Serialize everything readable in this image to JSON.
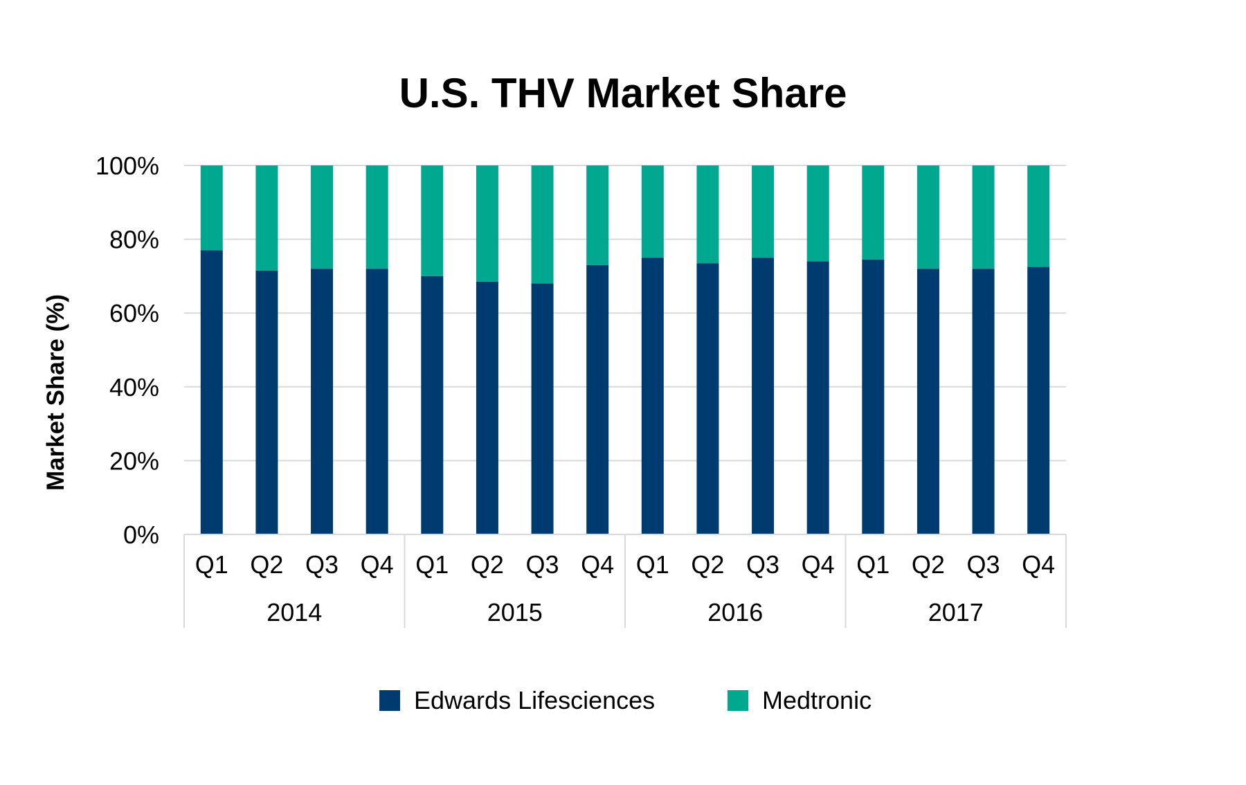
{
  "chart_data": {
    "type": "bar",
    "stacked": true,
    "title": "U.S. THV Market Share",
    "xlabel": "",
    "ylabel": "Market Share (%)",
    "ylim": [
      0,
      100
    ],
    "y_ticks": [
      0,
      20,
      40,
      60,
      80,
      100
    ],
    "y_tick_labels": [
      "0%",
      "20%",
      "40%",
      "60%",
      "80%",
      "100%"
    ],
    "grid": true,
    "legend_position": "bottom",
    "categories": [
      "Q1",
      "Q2",
      "Q3",
      "Q4",
      "Q1",
      "Q2",
      "Q3",
      "Q4",
      "Q1",
      "Q2",
      "Q3",
      "Q4",
      "Q1",
      "Q2",
      "Q3",
      "Q4"
    ],
    "groups": [
      {
        "label": "2014",
        "count": 4
      },
      {
        "label": "2015",
        "count": 4
      },
      {
        "label": "2016",
        "count": 4
      },
      {
        "label": "2017",
        "count": 4
      }
    ],
    "series": [
      {
        "name": "Edwards Lifesciences",
        "color": "#003B70",
        "values": [
          77,
          71.5,
          72,
          72,
          70,
          68.5,
          68,
          73,
          75,
          73.5,
          75,
          74,
          74.5,
          72,
          72,
          72.5
        ]
      },
      {
        "name": "Medtronic",
        "color": "#00A88F",
        "values": [
          23,
          28.5,
          28,
          28,
          30,
          31.5,
          32,
          27,
          25,
          26.5,
          25,
          26,
          25.5,
          28,
          28,
          27.5
        ]
      }
    ]
  }
}
